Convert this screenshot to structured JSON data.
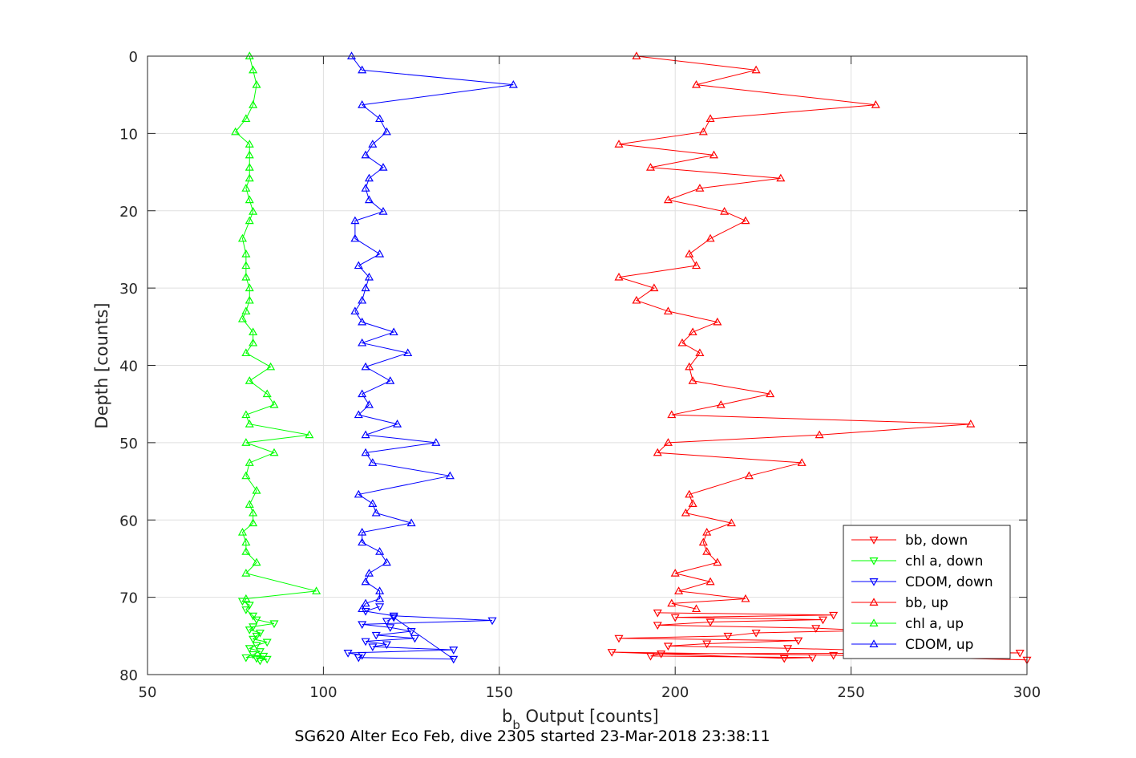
{
  "chart_data": {
    "type": "line",
    "xlabel": {
      "main": "b",
      "sub": "b",
      "rest": " Output [counts]"
    },
    "ylabel": "Depth [counts]",
    "caption": "SG620 Alter Eco Feb, dive 2305 started 23-Mar-2018 23:38:11",
    "xlim": [
      50,
      300
    ],
    "ylim": [
      0,
      80
    ],
    "y_reversed": true,
    "grid": true,
    "legend_position": "bottom-right",
    "xticks": [
      "50",
      "100",
      "150",
      "200",
      "250",
      "300"
    ],
    "yticks": [
      "0",
      "10",
      "20",
      "30",
      "40",
      "50",
      "60",
      "70",
      "80"
    ],
    "series": [
      {
        "name": "bb, down",
        "color": "#ff0000",
        "marker": "triangle-down",
        "x": [
          195,
          245,
          200,
          242,
          210,
          195,
          240,
          255,
          223,
          215,
          184,
          235,
          209,
          198,
          232,
          259,
          298,
          196,
          193,
          239,
          231,
          182,
          245,
          300
        ],
        "depth": [
          72.0,
          72.3,
          72.6,
          72.9,
          73.2,
          73.6,
          74.0,
          74.3,
          74.6,
          75.0,
          75.3,
          75.6,
          76.0,
          76.3,
          76.6,
          76.9,
          77.2,
          77.3,
          77.6,
          77.8,
          77.9,
          77.1,
          77.5,
          78.1
        ]
      },
      {
        "name": "chl a, down",
        "color": "#00ff00",
        "marker": "triangle-down",
        "x": [
          77,
          79,
          78,
          80,
          81,
          86,
          80,
          79,
          82,
          81,
          80,
          84,
          81,
          79,
          82,
          80,
          78,
          83,
          81,
          84,
          82
        ],
        "depth": [
          70.5,
          71.0,
          71.6,
          72.4,
          72.9,
          73.4,
          73.8,
          74.2,
          74.6,
          75.0,
          75.4,
          75.8,
          76.2,
          76.6,
          77.0,
          77.4,
          77.8,
          77.6,
          77.9,
          78.0,
          78.2
        ]
      },
      {
        "name": "CDOM, down",
        "color": "#0000ff",
        "marker": "triangle-down",
        "x": [
          116,
          112,
          120,
          148,
          111,
          119,
          125,
          115,
          126,
          112,
          118,
          114,
          137,
          107,
          111,
          110,
          137,
          120,
          118
        ],
        "depth": [
          71.2,
          71.8,
          72.4,
          73.0,
          73.5,
          73.9,
          74.4,
          74.9,
          75.3,
          75.7,
          76.1,
          76.4,
          76.8,
          77.2,
          77.5,
          77.8,
          78.0,
          72.6,
          73.1
        ]
      },
      {
        "name": "bb, up",
        "color": "#ff0000",
        "marker": "triangle-up",
        "x": [
          189,
          223,
          206,
          257,
          210,
          208,
          184,
          211,
          193,
          230,
          207,
          198,
          214,
          220,
          210,
          204,
          206,
          184,
          194,
          189,
          198,
          212,
          205,
          202,
          207,
          204,
          205,
          227,
          213,
          199,
          284,
          241,
          198,
          195,
          236,
          221,
          204,
          205,
          203,
          216,
          209,
          208,
          209,
          212,
          200,
          210,
          201,
          220,
          199,
          206
        ],
        "depth": [
          0,
          1.8,
          3.7,
          6.3,
          8.1,
          9.8,
          11.4,
          12.8,
          14.4,
          15.8,
          17.1,
          18.6,
          20.1,
          21.3,
          23.6,
          25.6,
          27.1,
          28.6,
          30.0,
          31.6,
          33.0,
          34.4,
          35.7,
          37.1,
          38.4,
          40.2,
          42.0,
          43.7,
          45.1,
          46.4,
          47.6,
          49.0,
          50.0,
          51.3,
          52.6,
          54.3,
          56.7,
          57.9,
          59.1,
          60.4,
          61.6,
          62.9,
          64.1,
          65.5,
          66.9,
          68.0,
          69.2,
          70.2,
          70.8,
          71.5
        ]
      },
      {
        "name": "chl a, up",
        "color": "#00ff00",
        "marker": "triangle-up",
        "x": [
          79,
          80,
          81,
          80,
          78,
          75,
          79,
          79,
          79,
          79,
          78,
          79,
          80,
          79,
          77,
          78,
          78,
          78,
          79,
          79,
          78,
          77,
          80,
          80,
          78,
          85,
          79,
          84,
          86,
          78,
          79,
          96,
          78,
          86,
          79,
          78,
          81,
          79,
          80,
          80,
          77,
          78,
          78,
          81,
          78,
          98,
          78
        ],
        "depth": [
          0,
          1.8,
          3.7,
          6.3,
          8.1,
          9.8,
          11.4,
          12.8,
          14.4,
          15.8,
          17.1,
          18.6,
          20.1,
          21.3,
          23.6,
          25.6,
          27.1,
          28.6,
          30.0,
          31.6,
          33.0,
          34.0,
          35.7,
          37.1,
          38.4,
          40.2,
          42.0,
          43.7,
          45.1,
          46.4,
          47.6,
          49.0,
          50.0,
          51.3,
          52.6,
          54.3,
          56.2,
          58.0,
          59.1,
          60.4,
          61.6,
          62.9,
          64.1,
          65.5,
          66.9,
          69.2,
          70.2
        ]
      },
      {
        "name": "CDOM, up",
        "color": "#0000ff",
        "marker": "triangle-up",
        "x": [
          108,
          111,
          154,
          111,
          116,
          118,
          114,
          112,
          117,
          113,
          112,
          113,
          117,
          109,
          109,
          116,
          110,
          113,
          112,
          111,
          109,
          111,
          120,
          111,
          124,
          112,
          119,
          111,
          113,
          110,
          121,
          112,
          132,
          112,
          114,
          136,
          110,
          114,
          115,
          125,
          111,
          111,
          116,
          118,
          113,
          112,
          116,
          116,
          112,
          111
        ],
        "depth": [
          0,
          1.8,
          3.7,
          6.3,
          8.1,
          9.8,
          11.4,
          12.8,
          14.4,
          15.8,
          17.1,
          18.6,
          20.1,
          21.3,
          23.6,
          25.6,
          27.1,
          28.6,
          30.0,
          31.6,
          33.0,
          34.4,
          35.7,
          37.1,
          38.4,
          40.2,
          42.0,
          43.7,
          45.1,
          46.4,
          47.6,
          49.0,
          50.0,
          51.3,
          52.6,
          54.3,
          56.7,
          57.9,
          59.1,
          60.4,
          61.6,
          62.9,
          64.1,
          65.5,
          66.9,
          68.0,
          69.2,
          70.2,
          70.8,
          71.5
        ]
      }
    ]
  }
}
